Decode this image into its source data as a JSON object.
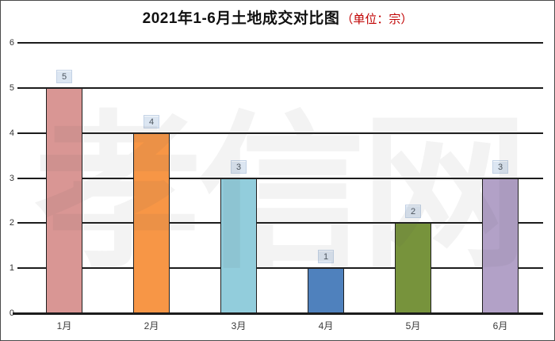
{
  "header": {
    "title": "2021年1-6月土地成交对比图",
    "unit": "（单位：宗）",
    "unit_color": "#c00000"
  },
  "watermark": {
    "text": "孝信网"
  },
  "chart_data": {
    "type": "bar",
    "title": "2021年1-6月土地成交对比图（单位：宗）",
    "unit": "宗",
    "categories": [
      "1月",
      "2月",
      "3月",
      "4月",
      "5月",
      "6月"
    ],
    "values": [
      5,
      4,
      3,
      1,
      2,
      3
    ],
    "data_labels": [
      "5",
      "4",
      "3",
      "1",
      "2",
      "3"
    ],
    "bar_colors": [
      "#D99694",
      "#F79646",
      "#92CDDC",
      "#4F81BD",
      "#77933C",
      "#B2A1C7"
    ],
    "bar_border_color": "#1f1f1f",
    "data_label_bg": "#dce6f2",
    "y_ticks": [
      0,
      1,
      2,
      3,
      4,
      5,
      6
    ],
    "ylim": [
      0,
      6
    ],
    "xlabel": "",
    "ylabel": "",
    "grid": true,
    "gridline_color": "#1c1c1c",
    "legend_position": "none"
  }
}
